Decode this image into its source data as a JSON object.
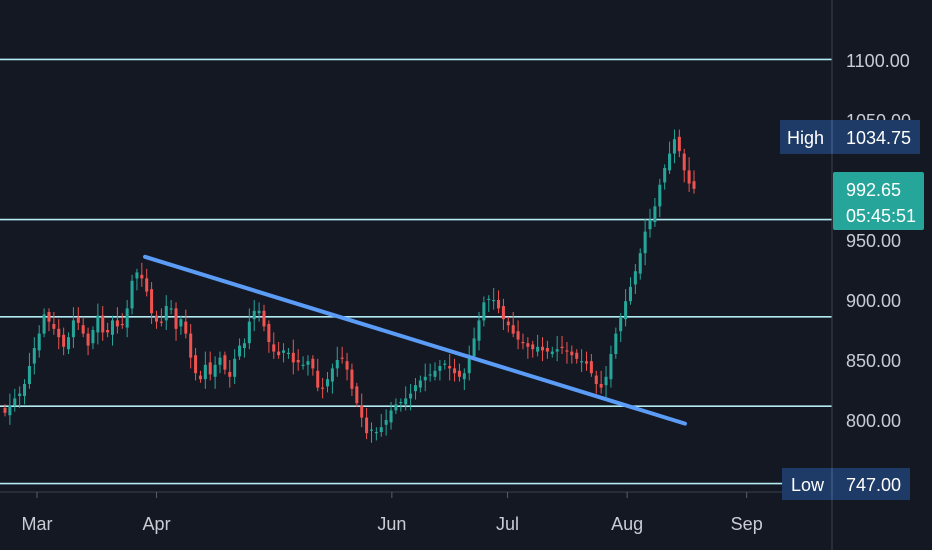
{
  "chart_data": {
    "type": "candlestick",
    "y_axis": {
      "ticks": [
        "1100.00",
        "1050.00",
        "950.00",
        "900.00",
        "850.00",
        "800.00"
      ],
      "ylim": [
        740,
        1145
      ]
    },
    "x_axis": {
      "ticks": [
        "Mar",
        "Apr",
        "Jun",
        "Jul",
        "Aug",
        "Sep"
      ]
    },
    "horizontal_levels": [
      1100.5,
      967,
      886,
      811.5,
      747
    ],
    "trendline": {
      "start": {
        "date": "2023-03-29",
        "value": 936
      },
      "end": {
        "date": "2023-08-16",
        "value": 797
      }
    },
    "high": {
      "label": "High",
      "value": "1034.75"
    },
    "low": {
      "label": "Low",
      "value": "747.00"
    },
    "last": {
      "price": "992.65",
      "countdown": "05:45:51"
    },
    "closes": [
      806,
      812,
      818,
      822,
      830,
      845,
      860,
      872,
      888,
      882,
      876,
      869,
      861,
      869,
      883,
      881,
      872,
      862,
      875,
      887,
      873,
      873,
      883,
      878,
      879,
      893,
      916,
      923,
      918,
      907,
      889,
      882,
      881,
      895,
      893,
      876,
      884,
      872,
      852,
      839,
      834,
      846,
      838,
      846,
      852,
      842,
      836,
      851,
      862,
      864,
      882,
      891,
      891,
      878,
      865,
      857,
      854,
      858,
      856,
      848,
      848,
      846,
      849,
      843,
      827,
      826,
      834,
      843,
      850,
      851,
      842,
      826,
      814,
      802,
      789,
      792,
      790,
      794,
      800,
      808,
      813,
      815,
      818,
      822,
      829,
      833,
      836,
      838,
      841,
      845,
      847,
      843,
      839,
      836,
      839,
      851,
      868,
      883,
      898,
      901,
      900,
      893,
      884,
      879,
      872,
      867,
      864,
      861,
      859,
      861,
      858,
      857,
      857,
      859,
      860,
      857,
      854,
      851,
      849,
      847,
      839,
      830,
      827,
      836,
      855,
      872,
      886,
      899,
      911,
      924,
      939,
      957,
      967,
      978,
      996,
      1010,
      1022,
      1034,
      1024,
      1008,
      997,
      992.65
    ],
    "colors": {
      "up": "#26a69a",
      "down": "#ef5350",
      "level": "#b2ebf2",
      "trendline": "#5b9cf6",
      "badge": "#1e3a66",
      "last_badge": "#26a69a",
      "background": "#141823"
    }
  }
}
